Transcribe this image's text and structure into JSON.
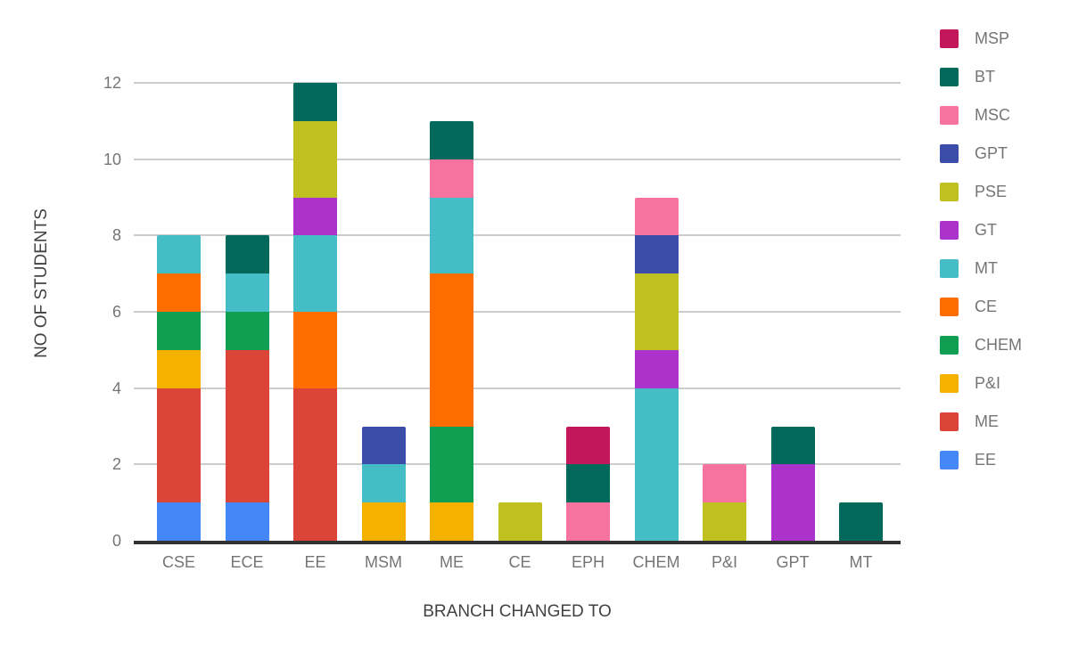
{
  "chart_data": {
    "type": "bar",
    "stacked": true,
    "xlabel": "BRANCH CHANGED TO",
    "ylabel": "NO OF STUDENTS",
    "ylim": [
      0,
      12
    ],
    "yticks": [
      0,
      2,
      4,
      6,
      8,
      10,
      12
    ],
    "grid": true,
    "legend_position": "right",
    "categories": [
      "CSE",
      "ECE",
      "EE",
      "MSM",
      "ME",
      "CE",
      "EPH",
      "CHEM",
      "P&I",
      "GPT",
      "MT"
    ],
    "series": [
      {
        "name": "EE",
        "color": "#4487f6",
        "values": [
          1,
          1,
          0,
          0,
          0,
          0,
          0,
          0,
          0,
          0,
          0
        ]
      },
      {
        "name": "ME",
        "color": "#db4437",
        "values": [
          3,
          4,
          4,
          0,
          0,
          0,
          0,
          0,
          0,
          0,
          0
        ]
      },
      {
        "name": "P&I",
        "color": "#f4b100",
        "values": [
          1,
          0,
          0,
          1,
          1,
          0,
          0,
          0,
          0,
          0,
          0
        ]
      },
      {
        "name": "CHEM",
        "color": "#109e52",
        "values": [
          1,
          1,
          0,
          0,
          2,
          0,
          0,
          0,
          0,
          0,
          0
        ]
      },
      {
        "name": "CE",
        "color": "#ff6d00",
        "values": [
          1,
          0,
          2,
          0,
          4,
          0,
          0,
          0,
          0,
          0,
          0
        ]
      },
      {
        "name": "MT",
        "color": "#45bdc6",
        "values": [
          1,
          1,
          2,
          1,
          2,
          0,
          0,
          4,
          0,
          0,
          0
        ]
      },
      {
        "name": "GT",
        "color": "#ab33cc",
        "values": [
          0,
          0,
          1,
          0,
          0,
          0,
          0,
          1,
          0,
          2,
          0
        ]
      },
      {
        "name": "PSE",
        "color": "#c0c121",
        "values": [
          0,
          0,
          2,
          0,
          0,
          1,
          0,
          2,
          1,
          0,
          0
        ]
      },
      {
        "name": "GPT",
        "color": "#3b4da8",
        "values": [
          0,
          0,
          0,
          1,
          0,
          0,
          0,
          1,
          0,
          0,
          0
        ]
      },
      {
        "name": "MSC",
        "color": "#f7739f",
        "values": [
          0,
          0,
          0,
          0,
          1,
          0,
          1,
          1,
          1,
          0,
          0
        ]
      },
      {
        "name": "BT",
        "color": "#00695c",
        "values": [
          0,
          1,
          1,
          0,
          1,
          0,
          1,
          0,
          0,
          1,
          1
        ]
      },
      {
        "name": "MSP",
        "color": "#c2185b",
        "values": [
          0,
          0,
          0,
          0,
          0,
          0,
          1,
          0,
          0,
          0,
          0
        ]
      }
    ],
    "legend_order": [
      "MSP",
      "BT",
      "MSC",
      "GPT",
      "PSE",
      "GT",
      "MT",
      "CE",
      "CHEM",
      "P&I",
      "ME",
      "EE"
    ]
  },
  "colors": {
    "grid": "#cccccc",
    "axis_line": "#323232",
    "tick_label": "#757575",
    "axis_title": "#424242",
    "legend_label": "#757575",
    "background": "#ffffff"
  }
}
